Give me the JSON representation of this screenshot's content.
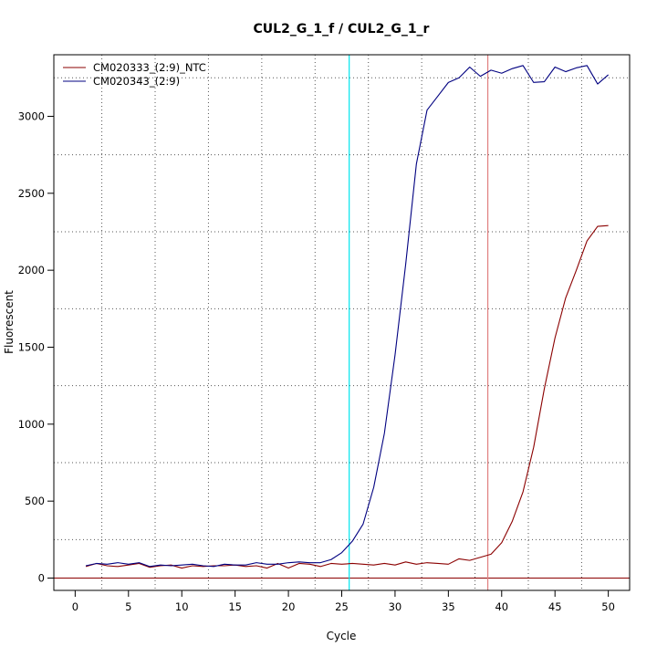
{
  "chart_data": {
    "type": "line",
    "title": "CUL2_G_1_f / CUL2_G_1_r",
    "xlabel": "Cycle",
    "ylabel": "Fluorescent",
    "xlim": [
      -2,
      52
    ],
    "ylim": [
      -80,
      3400
    ],
    "xticks": [
      0,
      5,
      10,
      15,
      20,
      25,
      30,
      35,
      40,
      45,
      50
    ],
    "yticks": [
      0,
      500,
      1000,
      1500,
      2000,
      2500,
      3000
    ],
    "grid": true,
    "grid_style": "dotted",
    "legend_position": "top-left",
    "x": [
      1,
      2,
      3,
      4,
      5,
      6,
      7,
      8,
      9,
      10,
      11,
      12,
      13,
      14,
      15,
      16,
      17,
      18,
      19,
      20,
      21,
      22,
      23,
      24,
      25,
      26,
      27,
      28,
      29,
      30,
      31,
      32,
      33,
      34,
      35,
      36,
      37,
      38,
      39,
      40,
      41,
      42,
      43,
      44,
      45,
      46,
      47,
      48,
      49,
      50
    ],
    "series": [
      {
        "name": "CM020333_(2:9)_NTC",
        "color": "#8b0000",
        "values": [
          75,
          95,
          80,
          75,
          85,
          95,
          70,
          80,
          85,
          65,
          80,
          75,
          80,
          80,
          85,
          75,
          80,
          65,
          95,
          65,
          95,
          90,
          75,
          95,
          90,
          95,
          90,
          85,
          95,
          85,
          105,
          90,
          100,
          95,
          90,
          125,
          115,
          135,
          155,
          230,
          370,
          560,
          850,
          1230,
          1560,
          1820,
          2000,
          2190,
          2285,
          2290
        ]
      },
      {
        "name": "CM020343_(2:9)",
        "color": "#000080",
        "values": [
          80,
          95,
          90,
          100,
          90,
          100,
          75,
          85,
          80,
          85,
          90,
          80,
          75,
          90,
          85,
          85,
          100,
          90,
          90,
          100,
          105,
          100,
          100,
          120,
          165,
          240,
          350,
          590,
          940,
          1450,
          2040,
          2690,
          3040,
          3130,
          3220,
          3250,
          3320,
          3260,
          3300,
          3280,
          3310,
          3330,
          3220,
          3225,
          3320,
          3290,
          3315,
          3330,
          3210,
          3270
        ]
      }
    ],
    "vlines": [
      {
        "x": 25.7,
        "color": "#00e5ee"
      },
      {
        "x": 38.7,
        "color": "#e08080"
      }
    ],
    "hlines": [
      {
        "y": 0,
        "color": "#8b0000"
      }
    ]
  }
}
